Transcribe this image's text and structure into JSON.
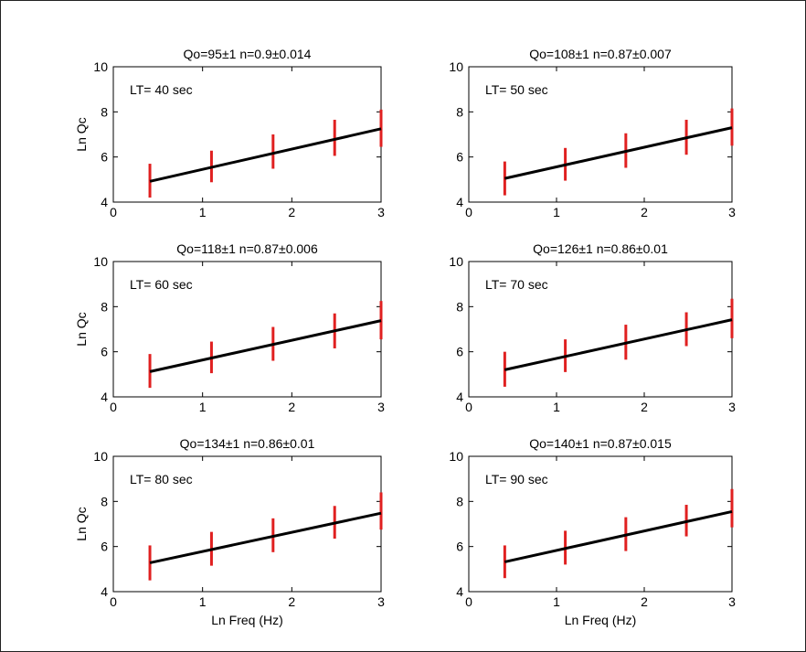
{
  "colors": {
    "fit_line": "#000000",
    "error_bar": "#e02020",
    "axes": "#000000",
    "background": "#ffffff"
  },
  "chart_data": [
    {
      "type": "line",
      "title": "Qo=95±1   n=0.9±0.014",
      "annotation": "LT= 40 sec",
      "xlabel": "",
      "ylabel": "Ln Qc",
      "xlim": [
        0,
        3
      ],
      "ylim": [
        4,
        10
      ],
      "xticks": [
        "0",
        "1",
        "2",
        "3"
      ],
      "yticks": [
        "4",
        "6",
        "8",
        "10"
      ],
      "fit_line": {
        "x": [
          0.41,
          3.0
        ],
        "y": [
          4.92,
          7.25
        ]
      },
      "error_bars": [
        {
          "x": 0.41,
          "low": 4.2,
          "high": 5.7
        },
        {
          "x": 1.1,
          "low": 4.88,
          "high": 6.28
        },
        {
          "x": 1.79,
          "low": 5.48,
          "high": 7.0
        },
        {
          "x": 2.48,
          "low": 6.05,
          "high": 7.65
        },
        {
          "x": 3.0,
          "low": 6.45,
          "high": 8.1
        }
      ]
    },
    {
      "type": "line",
      "title": "Qo=108±1   n=0.87±0.007",
      "annotation": "LT= 50 sec",
      "xlabel": "",
      "ylabel": "",
      "xlim": [
        0,
        3
      ],
      "ylim": [
        4,
        10
      ],
      "xticks": [
        "0",
        "1",
        "2",
        "3"
      ],
      "yticks": [
        "4",
        "6",
        "8",
        "10"
      ],
      "fit_line": {
        "x": [
          0.41,
          3.0
        ],
        "y": [
          5.05,
          7.3
        ]
      },
      "error_bars": [
        {
          "x": 0.41,
          "low": 4.3,
          "high": 5.8
        },
        {
          "x": 1.1,
          "low": 4.95,
          "high": 6.4
        },
        {
          "x": 1.79,
          "low": 5.52,
          "high": 7.05
        },
        {
          "x": 2.48,
          "low": 6.1,
          "high": 7.65
        },
        {
          "x": 3.0,
          "low": 6.5,
          "high": 8.15
        }
      ]
    },
    {
      "type": "line",
      "title": "Qo=118±1   n=0.87±0.006",
      "annotation": "LT= 60 sec",
      "xlabel": "",
      "ylabel": "Ln Qc",
      "xlim": [
        0,
        3
      ],
      "ylim": [
        4,
        10
      ],
      "xticks": [
        "0",
        "1",
        "2",
        "3"
      ],
      "yticks": [
        "4",
        "6",
        "8",
        "10"
      ],
      "fit_line": {
        "x": [
          0.41,
          3.0
        ],
        "y": [
          5.12,
          7.38
        ]
      },
      "error_bars": [
        {
          "x": 0.41,
          "low": 4.4,
          "high": 5.9
        },
        {
          "x": 1.1,
          "low": 5.05,
          "high": 6.45
        },
        {
          "x": 1.79,
          "low": 5.6,
          "high": 7.1
        },
        {
          "x": 2.48,
          "low": 6.15,
          "high": 7.7
        },
        {
          "x": 3.0,
          "low": 6.55,
          "high": 8.25
        }
      ]
    },
    {
      "type": "line",
      "title": "Qo=126±1   n=0.86±0.01",
      "annotation": "LT= 70 sec",
      "xlabel": "",
      "ylabel": "",
      "xlim": [
        0,
        3
      ],
      "ylim": [
        4,
        10
      ],
      "xticks": [
        "0",
        "1",
        "2",
        "3"
      ],
      "yticks": [
        "4",
        "6",
        "8",
        "10"
      ],
      "fit_line": {
        "x": [
          0.41,
          3.0
        ],
        "y": [
          5.2,
          7.42
        ]
      },
      "error_bars": [
        {
          "x": 0.41,
          "low": 4.45,
          "high": 6.0
        },
        {
          "x": 1.1,
          "low": 5.1,
          "high": 6.55
        },
        {
          "x": 1.79,
          "low": 5.65,
          "high": 7.2
        },
        {
          "x": 2.48,
          "low": 6.25,
          "high": 7.75
        },
        {
          "x": 3.0,
          "low": 6.6,
          "high": 8.35
        }
      ]
    },
    {
      "type": "line",
      "title": "Qo=134±1   n=0.86±0.01",
      "annotation": "LT= 80 sec",
      "xlabel": "Ln Freq (Hz)",
      "ylabel": "Ln Qc",
      "xlim": [
        0,
        3
      ],
      "ylim": [
        4,
        10
      ],
      "xticks": [
        "0",
        "1",
        "2",
        "3"
      ],
      "yticks": [
        "4",
        "6",
        "8",
        "10"
      ],
      "fit_line": {
        "x": [
          0.41,
          3.0
        ],
        "y": [
          5.28,
          7.48
        ]
      },
      "error_bars": [
        {
          "x": 0.41,
          "low": 4.5,
          "high": 6.05
        },
        {
          "x": 1.1,
          "low": 5.15,
          "high": 6.65
        },
        {
          "x": 1.79,
          "low": 5.75,
          "high": 7.25
        },
        {
          "x": 2.48,
          "low": 6.35,
          "high": 7.8
        },
        {
          "x": 3.0,
          "low": 6.75,
          "high": 8.4
        }
      ]
    },
    {
      "type": "line",
      "title": "Qo=140±1   n=0.87±0.015",
      "annotation": "LT= 90 sec",
      "xlabel": "Ln Freq (Hz)",
      "ylabel": "",
      "xlim": [
        0,
        3
      ],
      "ylim": [
        4,
        10
      ],
      "xticks": [
        "0",
        "1",
        "2",
        "3"
      ],
      "yticks": [
        "4",
        "6",
        "8",
        "10"
      ],
      "fit_line": {
        "x": [
          0.41,
          3.0
        ],
        "y": [
          5.32,
          7.55
        ]
      },
      "error_bars": [
        {
          "x": 0.41,
          "low": 4.6,
          "high": 6.05
        },
        {
          "x": 1.1,
          "low": 5.2,
          "high": 6.7
        },
        {
          "x": 1.79,
          "low": 5.8,
          "high": 7.3
        },
        {
          "x": 2.48,
          "low": 6.45,
          "high": 7.85
        },
        {
          "x": 3.0,
          "low": 6.85,
          "high": 8.55
        }
      ]
    }
  ]
}
